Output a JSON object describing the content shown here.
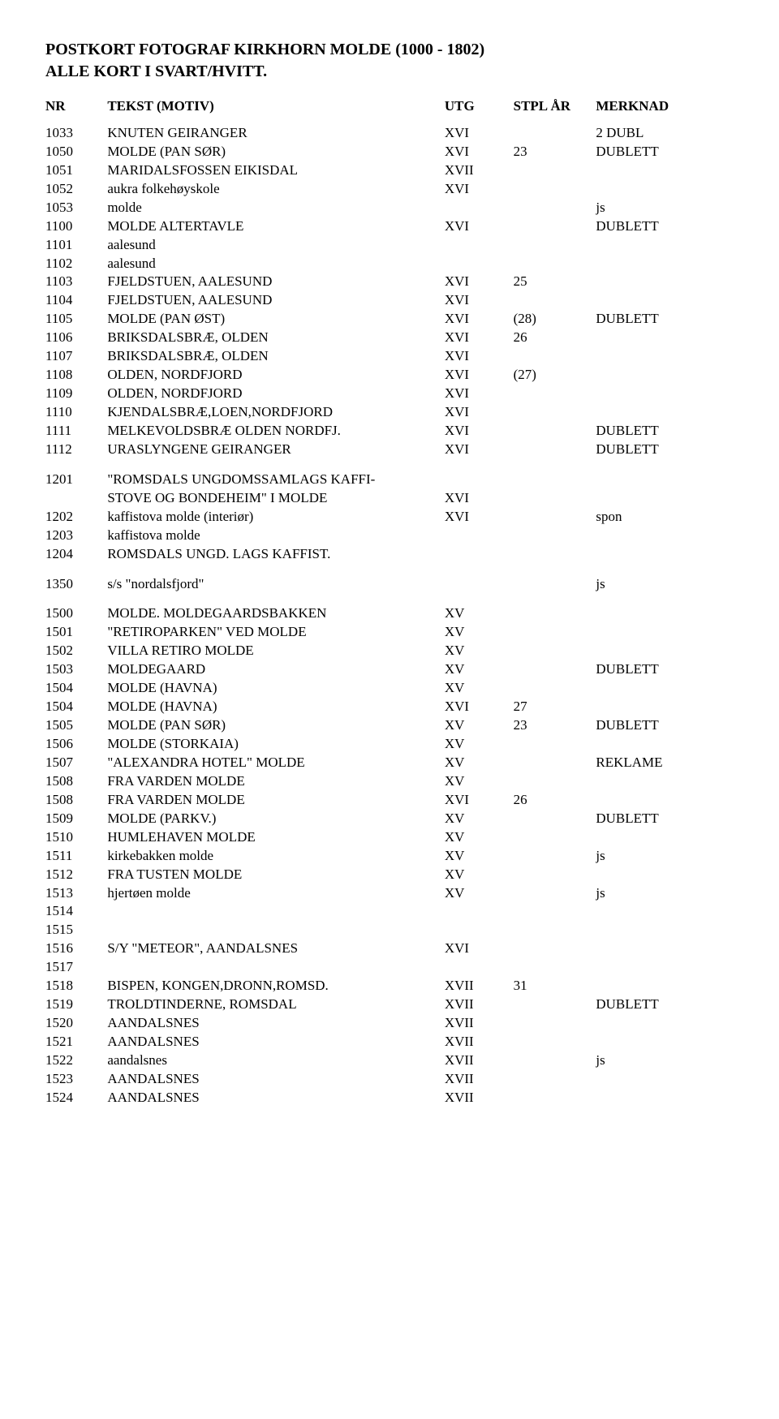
{
  "title_line1": "POSTKORT FOTOGRAF KIRKHORN MOLDE (1000 - 1802)",
  "title_line2": "ALLE KORT I SVART/HVITT.",
  "headers": {
    "nr": "NR",
    "tekst": "TEKST (MOTIV)",
    "utg": "UTG",
    "stpl": "STPL ÅR",
    "merk": "MERKNAD"
  },
  "groups": [
    {
      "rows": [
        {
          "nr": "1033",
          "tekst": "KNUTEN GEIRANGER",
          "utg": "XVI",
          "stpl": "",
          "merk": "2 DUBL"
        },
        {
          "nr": "1050",
          "tekst": "MOLDE (PAN SØR)",
          "utg": "XVI",
          "stpl": "23",
          "merk": "DUBLETT"
        },
        {
          "nr": "1051",
          "tekst": "MARIDALSFOSSEN EIKISDAL",
          "utg": "XVII",
          "stpl": "",
          "merk": ""
        },
        {
          "nr": "1052",
          "tekst": "aukra folkehøyskole",
          "utg": "XVI",
          "stpl": "",
          "merk": ""
        },
        {
          "nr": "1053",
          "tekst": "molde",
          "utg": "",
          "stpl": "",
          "merk": "js"
        },
        {
          "nr": "1100",
          "tekst": "MOLDE ALTERTAVLE",
          "utg": "XVI",
          "stpl": "",
          "merk": "DUBLETT"
        },
        {
          "nr": "1101",
          "tekst": "aalesund",
          "utg": "",
          "stpl": "",
          "merk": ""
        },
        {
          "nr": "1102",
          "tekst": "aalesund",
          "utg": "",
          "stpl": "",
          "merk": ""
        },
        {
          "nr": "1103",
          "tekst": "FJELDSTUEN, AALESUND",
          "utg": "XVI",
          "stpl": "25",
          "merk": ""
        },
        {
          "nr": "1104",
          "tekst": "FJELDSTUEN, AALESUND",
          "utg": "XVI",
          "stpl": "",
          "merk": ""
        },
        {
          "nr": "1105",
          "tekst": "MOLDE (PAN ØST)",
          "utg": "XVI",
          "stpl": "(28)",
          "merk": "DUBLETT"
        },
        {
          "nr": "1106",
          "tekst": "BRIKSDALSBRÆ, OLDEN",
          "utg": "XVI",
          "stpl": "26",
          "merk": ""
        },
        {
          "nr": "1107",
          "tekst": "BRIKSDALSBRÆ, OLDEN",
          "utg": "XVI",
          "stpl": "",
          "merk": ""
        },
        {
          "nr": "1108",
          "tekst": "OLDEN, NORDFJORD",
          "utg": "XVI",
          "stpl": "(27)",
          "merk": ""
        },
        {
          "nr": "1109",
          "tekst": "OLDEN, NORDFJORD",
          "utg": "XVI",
          "stpl": "",
          "merk": ""
        },
        {
          "nr": "1110",
          "tekst": "KJENDALSBRÆ,LOEN,NORDFJORD",
          "utg": "XVI",
          "stpl": "",
          "merk": ""
        },
        {
          "nr": "1111",
          "tekst": "MELKEVOLDSBRÆ OLDEN NORDFJ.",
          "utg": "XVI",
          "stpl": "",
          "merk": "DUBLETT"
        },
        {
          "nr": "1112",
          "tekst": "URASLYNGENE GEIRANGER",
          "utg": "XVI",
          "stpl": "",
          "merk": "DUBLETT"
        }
      ]
    },
    {
      "rows": [
        {
          "nr": "1201",
          "tekst": "\"ROMSDALS UNGDOMSSAMLAGS KAFFI-",
          "utg": "",
          "stpl": "",
          "merk": ""
        },
        {
          "nr": "",
          "tekst": "STOVE OG BONDEHEIM\" I MOLDE",
          "utg": "XVI",
          "stpl": "",
          "merk": ""
        },
        {
          "nr": "1202",
          "tekst": "kaffistova molde (interiør)",
          "utg": "XVI",
          "stpl": "",
          "merk": "spon"
        },
        {
          "nr": "1203",
          "tekst": "kaffistova molde",
          "utg": "",
          "stpl": "",
          "merk": ""
        },
        {
          "nr": "1204",
          "tekst": "ROMSDALS UNGD. LAGS KAFFIST.",
          "utg": "",
          "stpl": "",
          "merk": ""
        }
      ]
    },
    {
      "rows": [
        {
          "nr": "1350",
          "tekst": "s/s \"nordalsfjord\"",
          "utg": "",
          "stpl": "",
          "merk": "js"
        }
      ]
    },
    {
      "rows": [
        {
          "nr": "1500",
          "tekst": "MOLDE. MOLDEGAARDSBAKKEN",
          "utg": "XV",
          "stpl": "",
          "merk": ""
        },
        {
          "nr": "1501",
          "tekst": "\"RETIROPARKEN\" VED MOLDE",
          "utg": "XV",
          "stpl": "",
          "merk": ""
        },
        {
          "nr": "1502",
          "tekst": "VILLA RETIRO MOLDE",
          "utg": "XV",
          "stpl": "",
          "merk": ""
        },
        {
          "nr": "1503",
          "tekst": "MOLDEGAARD",
          "utg": "XV",
          "stpl": "",
          "merk": "DUBLETT"
        },
        {
          "nr": "1504",
          "tekst": "MOLDE (HAVNA)",
          "utg": "XV",
          "stpl": "",
          "merk": ""
        },
        {
          "nr": "1504",
          "tekst": "MOLDE (HAVNA)",
          "utg": "XVI",
          "stpl": "27",
          "merk": ""
        },
        {
          "nr": "1505",
          "tekst": "MOLDE (PAN SØR)",
          "utg": "XV",
          "stpl": "23",
          "merk": "DUBLETT"
        },
        {
          "nr": "1506",
          "tekst": "MOLDE (STORKAIA)",
          "utg": "XV",
          "stpl": "",
          "merk": ""
        },
        {
          "nr": "1507",
          "tekst": "\"ALEXANDRA HOTEL\" MOLDE",
          "utg": "XV",
          "stpl": "",
          "merk": "REKLAME"
        },
        {
          "nr": "1508",
          "tekst": "FRA VARDEN MOLDE",
          "utg": "XV",
          "stpl": "",
          "merk": ""
        },
        {
          "nr": "1508",
          "tekst": "FRA VARDEN MOLDE",
          "utg": "XVI",
          "stpl": "26",
          "merk": ""
        },
        {
          "nr": "1509",
          "tekst": "MOLDE (PARKV.)",
          "utg": "XV",
          "stpl": "",
          "merk": "DUBLETT"
        },
        {
          "nr": "1510",
          "tekst": "HUMLEHAVEN MOLDE",
          "utg": "XV",
          "stpl": "",
          "merk": ""
        },
        {
          "nr": "1511",
          "tekst": "kirkebakken  molde",
          "utg": "XV",
          "stpl": "",
          "merk": "js"
        },
        {
          "nr": "1512",
          "tekst": "FRA TUSTEN MOLDE",
          "utg": "XV",
          "stpl": "",
          "merk": ""
        },
        {
          "nr": "1513",
          "tekst": "hjertøen molde",
          "utg": "XV",
          "stpl": "",
          "merk": "js"
        },
        {
          "nr": "1514",
          "tekst": "",
          "utg": "",
          "stpl": "",
          "merk": ""
        },
        {
          "nr": "1515",
          "tekst": "",
          "utg": "",
          "stpl": "",
          "merk": ""
        },
        {
          "nr": "1516",
          "tekst": "S/Y \"METEOR\", AANDALSNES",
          "utg": "XVI",
          "stpl": "",
          "merk": ""
        },
        {
          "nr": "1517",
          "tekst": "",
          "utg": "",
          "stpl": "",
          "merk": ""
        },
        {
          "nr": "1518",
          "tekst": "BISPEN, KONGEN,DRONN,ROMSD.",
          "utg": "XVII",
          "stpl": "31",
          "merk": ""
        },
        {
          "nr": "1519",
          "tekst": "TROLDTINDERNE, ROMSDAL",
          "utg": "XVII",
          "stpl": "",
          "merk": "DUBLETT"
        },
        {
          "nr": "1520",
          "tekst": "AANDALSNES",
          "utg": "XVII",
          "stpl": "",
          "merk": ""
        },
        {
          "nr": "1521",
          "tekst": "AANDALSNES",
          "utg": "XVII",
          "stpl": "",
          "merk": ""
        },
        {
          "nr": "1522",
          "tekst": "aandalsnes",
          "utg": "XVII",
          "stpl": "",
          "merk": "js"
        },
        {
          "nr": "1523",
          "tekst": "AANDALSNES",
          "utg": "XVII",
          "stpl": "",
          "merk": ""
        },
        {
          "nr": "1524",
          "tekst": "AANDALSNES",
          "utg": "XVII",
          "stpl": "",
          "merk": ""
        }
      ]
    }
  ]
}
